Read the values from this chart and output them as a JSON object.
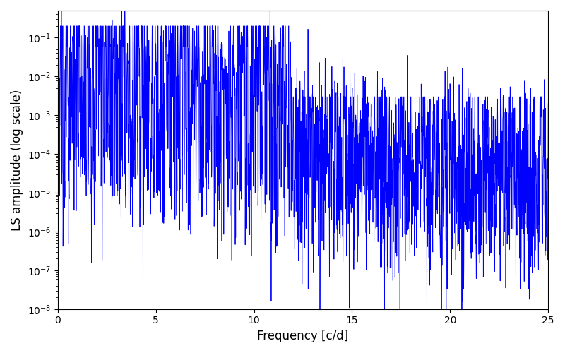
{
  "xlabel": "Frequency [c/d]",
  "ylabel": "LS amplitude (log scale)",
  "xlim": [
    0,
    25
  ],
  "ylim": [
    1e-08,
    0.5
  ],
  "line_color": "#0000FF",
  "background_color": "#ffffff",
  "figsize": [
    8.0,
    5.0
  ],
  "dpi": 100,
  "freq_max": 25.0,
  "n_points": 3000,
  "seed": 12345
}
